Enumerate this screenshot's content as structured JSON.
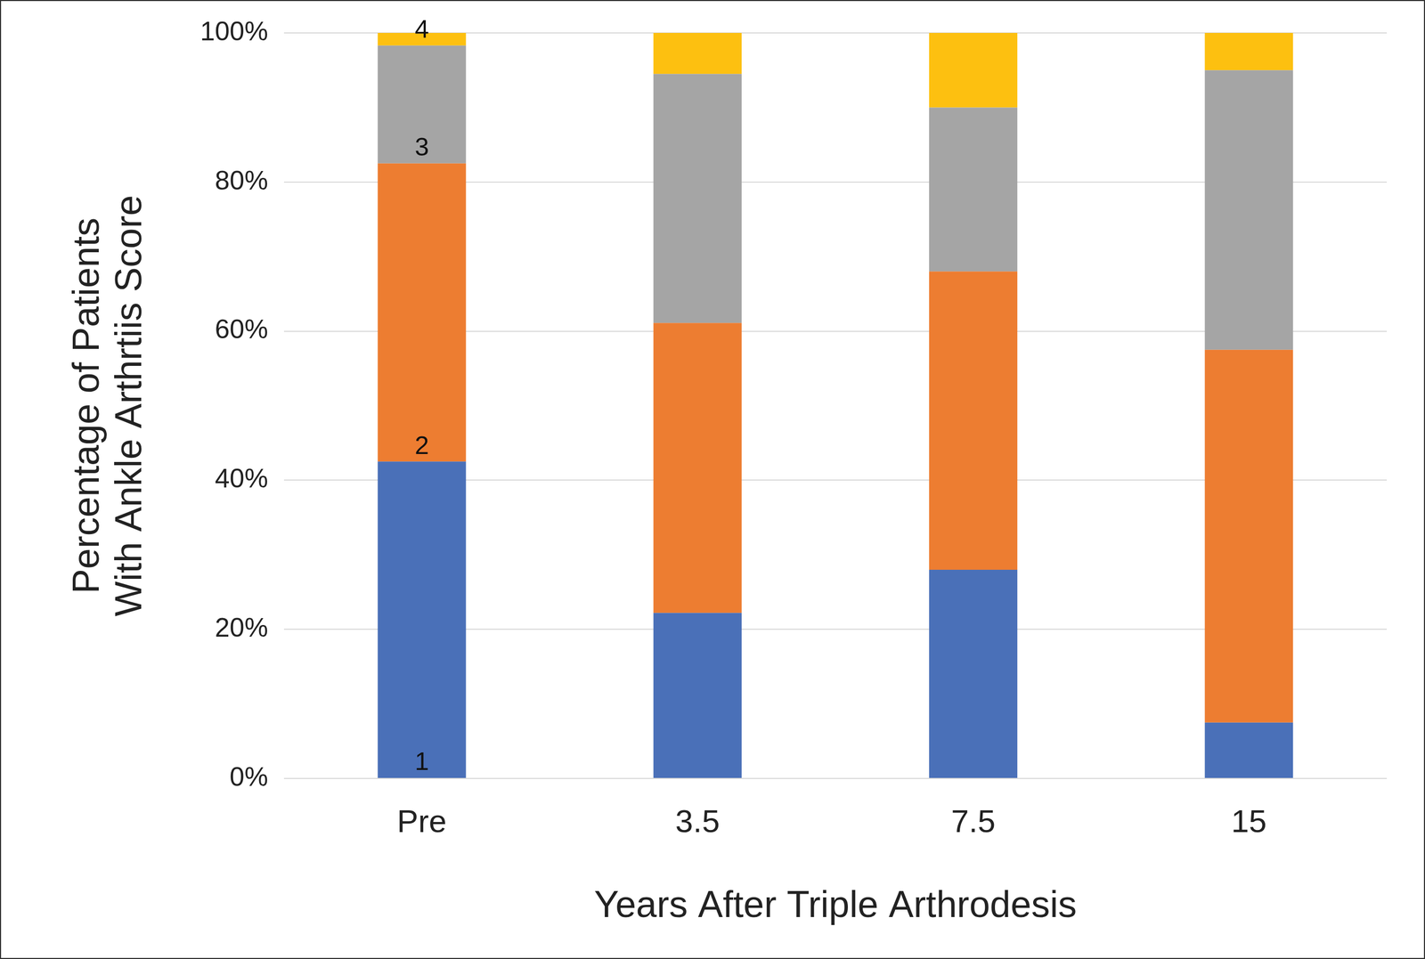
{
  "chart_data": {
    "type": "bar",
    "stacked": true,
    "grid": true,
    "x_label": "Years After Triple Arthrodesis",
    "y_label": [
      "Percentage of Patients",
      "With Ankle Arthrtiis Score"
    ],
    "categories": [
      "Pre",
      "3.5",
      "7.5",
      "15"
    ],
    "series": [
      {
        "name": "1",
        "color": "#4a70b8",
        "values": [
          42.5,
          22.2,
          28.0,
          7.5
        ]
      },
      {
        "name": "2",
        "color": "#ed7d31",
        "values": [
          40.0,
          38.9,
          40.0,
          50.0
        ]
      },
      {
        "name": "3",
        "color": "#a5a5a5",
        "values": [
          15.8,
          33.4,
          22.0,
          37.5
        ]
      },
      {
        "name": "4",
        "color": "#fdc010",
        "values": [
          1.7,
          5.5,
          10.0,
          5.0
        ]
      }
    ],
    "ylim": [
      0,
      100
    ],
    "yticks": [
      {
        "value": 0,
        "label": "0%"
      },
      {
        "value": 20,
        "label": "20%"
      },
      {
        "value": 40,
        "label": "40%"
      },
      {
        "value": 60,
        "label": "60%"
      },
      {
        "value": 80,
        "label": "80%"
      },
      {
        "value": 100,
        "label": "100%"
      }
    ]
  }
}
